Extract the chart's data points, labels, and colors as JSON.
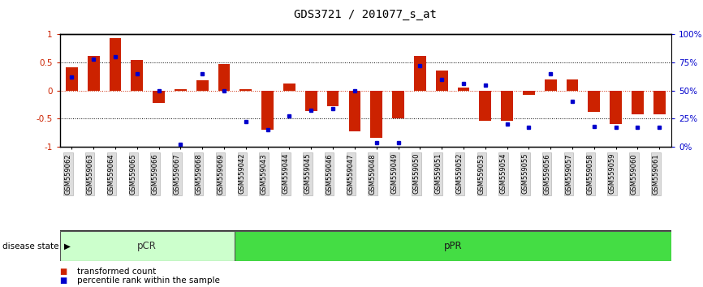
{
  "title": "GDS3721 / 201077_s_at",
  "samples": [
    "GSM559062",
    "GSM559063",
    "GSM559064",
    "GSM559065",
    "GSM559066",
    "GSM559067",
    "GSM559068",
    "GSM559069",
    "GSM559042",
    "GSM559043",
    "GSM559044",
    "GSM559045",
    "GSM559046",
    "GSM559047",
    "GSM559048",
    "GSM559049",
    "GSM559050",
    "GSM559051",
    "GSM559052",
    "GSM559053",
    "GSM559054",
    "GSM559055",
    "GSM559056",
    "GSM559057",
    "GSM559058",
    "GSM559059",
    "GSM559060",
    "GSM559061"
  ],
  "red_bars": [
    0.42,
    0.62,
    0.93,
    0.55,
    -0.22,
    0.02,
    0.18,
    0.47,
    0.02,
    -0.7,
    0.13,
    -0.37,
    -0.28,
    -0.73,
    -0.85,
    -0.5,
    0.62,
    0.36,
    0.05,
    -0.55,
    -0.55,
    -0.08,
    0.2,
    0.2,
    -0.38,
    -0.6,
    -0.43,
    -0.42
  ],
  "blue_squares_pct": [
    62,
    78,
    80,
    65,
    50,
    2,
    65,
    50,
    22,
    15,
    27,
    32,
    34,
    50,
    3,
    3,
    72,
    60,
    56,
    55,
    20,
    17,
    65,
    40,
    18,
    17,
    17,
    17
  ],
  "pCR_count": 8,
  "disease_state_label": "disease state",
  "legend_red": "transformed count",
  "legend_blue": "percentile rank within the sample",
  "bar_color": "#CC2200",
  "square_color": "#0000CC",
  "pCR_color": "#CCFFCC",
  "pPR_color": "#44DD44",
  "tick_color_left": "#CC2200",
  "tick_color_right": "#0000CC"
}
